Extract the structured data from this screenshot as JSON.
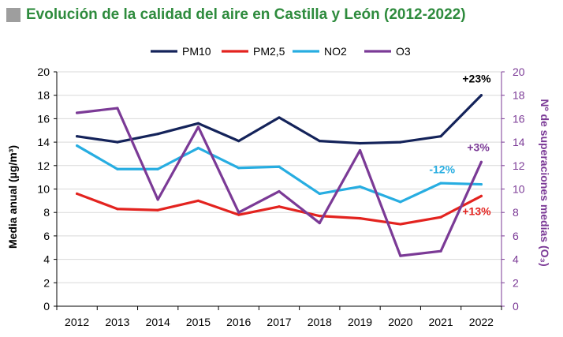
{
  "header": {
    "title": "Evolución de la calidad del aire en Castilla y León (2012-2022)"
  },
  "chart_data": {
    "type": "line",
    "x": [
      "2012",
      "2013",
      "2014",
      "2015",
      "2016",
      "2017",
      "2018",
      "2019",
      "2020",
      "2021",
      "2022"
    ],
    "series": [
      {
        "name": "PM10",
        "axis": "left",
        "color": "#14235a",
        "values": [
          14.5,
          14.0,
          14.7,
          15.6,
          14.1,
          16.1,
          14.1,
          13.9,
          14.0,
          14.5,
          18.0
        ]
      },
      {
        "name": "PM2,5",
        "axis": "left",
        "color": "#e3231f",
        "values": [
          9.6,
          8.3,
          8.2,
          9.0,
          7.8,
          8.5,
          7.7,
          7.5,
          7.0,
          7.6,
          9.4
        ]
      },
      {
        "name": "NO2",
        "axis": "left",
        "color": "#27ade1",
        "values": [
          13.7,
          11.7,
          11.7,
          13.5,
          11.8,
          11.9,
          9.6,
          10.2,
          8.9,
          10.5,
          10.4
        ]
      },
      {
        "name": "O3",
        "axis": "right",
        "color": "#7b3a96",
        "values": [
          16.5,
          16.9,
          9.1,
          15.3,
          8.0,
          9.8,
          7.1,
          13.3,
          4.3,
          4.7,
          12.3
        ]
      }
    ],
    "ylabel": "Media anual (µg/m³)",
    "ylabel2": "Nº de superaciones medias (O₃)",
    "ylim": [
      0,
      20
    ],
    "y2lim": [
      0,
      20
    ],
    "yticks": [
      "0",
      "2",
      "4",
      "6",
      "8",
      "10",
      "12",
      "14",
      "16",
      "18",
      "20"
    ],
    "legend": {
      "position": "top-center",
      "entries": [
        "PM10",
        "PM2,5",
        "NO2",
        "O3"
      ]
    },
    "annotations": [
      {
        "text": "+23%",
        "series": "PM10",
        "color": "#000000"
      },
      {
        "text": "+3%",
        "series": "O3",
        "color": "#7b3a96"
      },
      {
        "text": "-12%",
        "series": "NO2",
        "color": "#27ade1"
      },
      {
        "text": "+13%",
        "series": "PM2,5",
        "color": "#e3231f"
      }
    ]
  }
}
